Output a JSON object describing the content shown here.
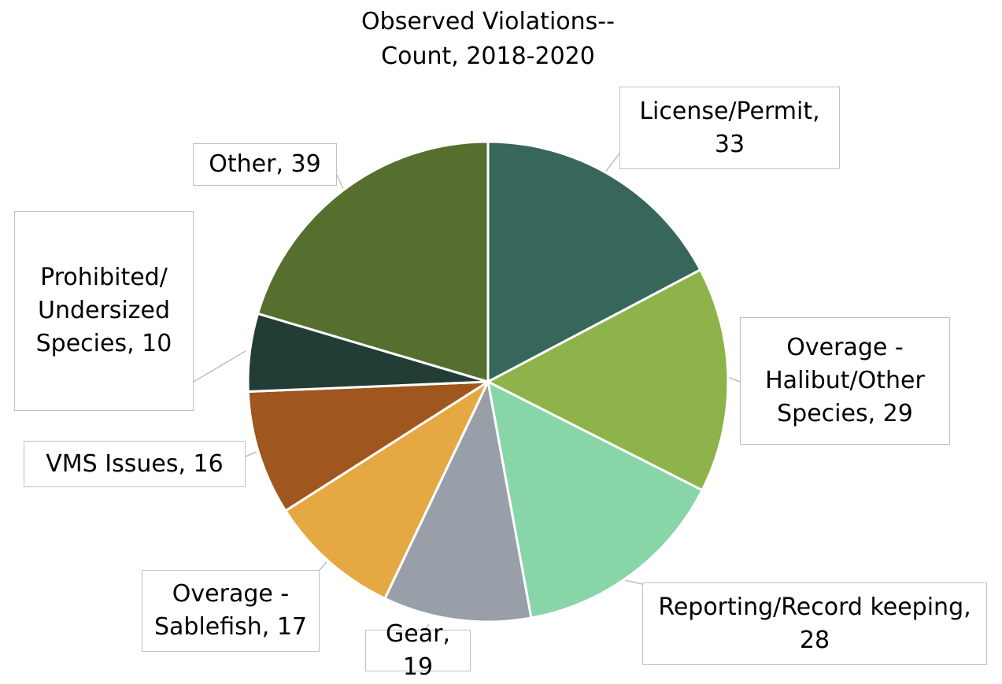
{
  "chart_data": {
    "type": "pie",
    "title": "Observed Violations-- Count, 2018-2020",
    "values": [
      33,
      29,
      28,
      19,
      17,
      16,
      10,
      39
    ],
    "value_labels": [
      "License/Permit, 33",
      "Overage - Halibut/Other Species, 29",
      "Reporting/Record keeping, 28",
      "Gear, 19",
      "Overage - Sablefish, 17",
      "VMS Issues, 16",
      "Prohibited/ Undersized Species, 10",
      "Other, 39"
    ],
    "colors": [
      "#36675a",
      "#8db34a",
      "#88d5a8",
      "#989fa8",
      "#e5a843",
      "#a0561f",
      "#223d35",
      "#566f2e"
    ]
  }
}
